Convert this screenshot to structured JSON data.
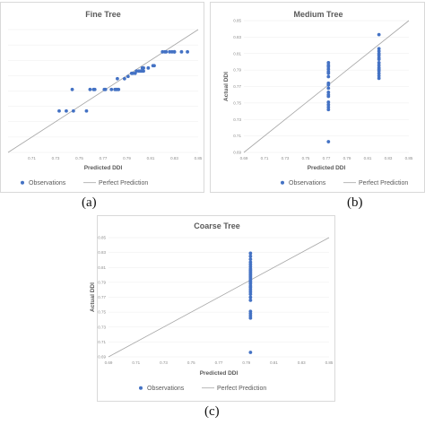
{
  "legend": {
    "observations": "Observations",
    "perfect": "Perfect Prediction"
  },
  "captions": {
    "a": "(a)",
    "b": "(b)",
    "c": "(c)"
  },
  "chart_data": [
    {
      "type": "scatter",
      "title": "Fine Tree",
      "xlabel": "Predicted DDI",
      "ylabel": "",
      "xlim": [
        0.69,
        0.85
      ],
      "ylim": [
        0.69,
        0.85
      ],
      "x_ticks": [
        "0.71",
        "0.73",
        "0.75",
        "0.77",
        "0.79",
        "0.81",
        "0.83",
        "0.85"
      ],
      "y_ticks": [],
      "series": [
        {
          "name": "Observations",
          "color": "#4472c4",
          "x": [
            0.733,
            0.739,
            0.745,
            0.756,
            0.744,
            0.759,
            0.762,
            0.763,
            0.771,
            0.772,
            0.777,
            0.78,
            0.781,
            0.782,
            0.783,
            0.782,
            0.788,
            0.791,
            0.794,
            0.795,
            0.797,
            0.798,
            0.8,
            0.801,
            0.802,
            0.803,
            0.804,
            0.803,
            0.804,
            0.808,
            0.812,
            0.813,
            0.82,
            0.822,
            0.823,
            0.826,
            0.828,
            0.83,
            0.83,
            0.836,
            0.841
          ],
          "y": [
            0.744,
            0.744,
            0.744,
            0.744,
            0.772,
            0.772,
            0.772,
            0.772,
            0.772,
            0.772,
            0.772,
            0.772,
            0.772,
            0.772,
            0.772,
            0.786,
            0.786,
            0.789,
            0.793,
            0.793,
            0.793,
            0.796,
            0.796,
            0.796,
            0.796,
            0.796,
            0.796,
            0.8,
            0.8,
            0.8,
            0.803,
            0.803,
            0.821,
            0.821,
            0.821,
            0.821,
            0.821,
            0.821,
            0.821,
            0.821,
            0.821
          ]
        }
      ],
      "reference": {
        "name": "Perfect Prediction",
        "color": "#a6a6a6"
      }
    },
    {
      "type": "scatter",
      "title": "Medium Tree",
      "xlabel": "Predicted DDI",
      "ylabel": "Actual DDI",
      "xlim": [
        0.69,
        0.85
      ],
      "ylim": [
        0.69,
        0.85
      ],
      "x_ticks": [
        "0.69",
        "0.71",
        "0.73",
        "0.75",
        "0.77",
        "0.79",
        "0.81",
        "0.83",
        "0.85"
      ],
      "y_ticks": [
        "0.69",
        "0.71",
        "0.73",
        "0.75",
        "0.77",
        "0.79",
        "0.81",
        "0.83",
        "0.85"
      ],
      "series": [
        {
          "name": "Observations",
          "color": "#4472c4",
          "x": [
            0.772,
            0.772,
            0.772,
            0.772,
            0.772,
            0.772,
            0.772,
            0.772,
            0.772,
            0.772,
            0.772,
            0.772,
            0.772,
            0.772,
            0.772,
            0.772,
            0.772,
            0.772,
            0.821,
            0.821,
            0.821,
            0.821,
            0.821,
            0.821,
            0.821,
            0.821,
            0.821,
            0.821,
            0.821,
            0.821,
            0.821,
            0.821,
            0.821
          ],
          "y": [
            0.703,
            0.742,
            0.745,
            0.748,
            0.751,
            0.758,
            0.76,
            0.763,
            0.768,
            0.772,
            0.774,
            0.782,
            0.786,
            0.788,
            0.791,
            0.794,
            0.796,
            0.799,
            0.78,
            0.783,
            0.786,
            0.789,
            0.791,
            0.793,
            0.796,
            0.799,
            0.803,
            0.805,
            0.808,
            0.81,
            0.813,
            0.816,
            0.833
          ]
        }
      ],
      "reference": {
        "name": "Perfect Prediction",
        "color": "#a6a6a6"
      }
    },
    {
      "type": "scatter",
      "title": "Coarse Tree",
      "xlabel": "Predicted DDI",
      "ylabel": "Actual DDI",
      "xlim": [
        0.69,
        0.85
      ],
      "ylim": [
        0.69,
        0.85
      ],
      "x_ticks": [
        "0.69",
        "0.71",
        "0.73",
        "0.75",
        "0.77",
        "0.79",
        "0.81",
        "0.83",
        "0.85"
      ],
      "y_ticks": [
        "0.69",
        "0.71",
        "0.73",
        "0.75",
        "0.77",
        "0.79",
        "0.81",
        "0.83",
        "0.85"
      ],
      "series": [
        {
          "name": "Observations",
          "color": "#4472c4",
          "x": [
            0.793,
            0.793,
            0.793,
            0.793,
            0.793,
            0.793,
            0.793,
            0.793,
            0.793,
            0.793,
            0.793,
            0.793,
            0.793,
            0.793,
            0.793,
            0.793,
            0.793,
            0.793,
            0.793,
            0.793,
            0.793,
            0.793,
            0.793,
            0.793,
            0.793,
            0.793,
            0.793,
            0.793,
            0.793
          ],
          "y": [
            0.696,
            0.742,
            0.745,
            0.748,
            0.751,
            0.766,
            0.77,
            0.774,
            0.777,
            0.78,
            0.783,
            0.785,
            0.788,
            0.79,
            0.792,
            0.794,
            0.796,
            0.798,
            0.8,
            0.802,
            0.804,
            0.806,
            0.808,
            0.811,
            0.814,
            0.817,
            0.821,
            0.825,
            0.829
          ]
        }
      ],
      "reference": {
        "name": "Perfect Prediction",
        "color": "#a6a6a6"
      }
    }
  ]
}
